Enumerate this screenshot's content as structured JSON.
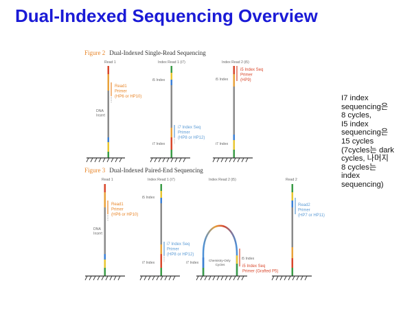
{
  "title": "Dual-Indexed Sequencing Overview",
  "note": "I7 index\nsequencing은\n8 cycles,\nI5 index\nsequencing은\n15 cycles\n(7cycles는 dark\ncycles, 나머지\n8 cycles는\nindex\nsequencing)",
  "colors": {
    "title": "#1a1ad6",
    "figure_number": "#e8862a",
    "read1_primer": "#e8862a",
    "i7_primer": "#5b9bd5",
    "i5_primer": "#d9472b",
    "read2_primer": "#5b9bd5",
    "grey_insert": "#7a7a7a"
  },
  "fig2": {
    "number": "Figure 2",
    "caption": "Dual-Indexed Single-Read Sequencing",
    "columns": [
      "Read 1",
      "Index Read 1 (i7)",
      "Index Read 2 (i5)"
    ],
    "labels": {
      "read1_primer": [
        "Read1",
        "Primer",
        "(HP6 or HP10)"
      ],
      "dna_insert": [
        "DNA",
        "Insert"
      ],
      "i5_index_1": "i5 Index",
      "i5_index_2": "i5 Index",
      "i7_index_1": "i7 Index",
      "i7_index_2": "i7 Index",
      "i7_primer": [
        "i7 Index Seq",
        "Primer",
        "(HP8 or HP12)"
      ],
      "i5_primer": [
        "i5 Index Seq",
        "Primer",
        "(HP9)"
      ]
    }
  },
  "fig3": {
    "number": "Figure 3",
    "caption": "Dual-Indexed Paired-End Sequencing",
    "columns": [
      "Read 1",
      "Index Read 1 (i7)",
      "Index Read 2 (i5)",
      "Read 2"
    ],
    "labels": {
      "read1_primer": [
        "Read1",
        "Primer",
        "(HP6 or HP10)"
      ],
      "dna_insert": [
        "DNA",
        "Insert"
      ],
      "i5_index": "i5 Index",
      "i7_index_1": "i7 Index",
      "i7_index_2": "i7 Index",
      "i7_primer": [
        "i7 Index Seq",
        "Primer",
        "(HP8 or HP12)"
      ],
      "i5_index_loop": "i5 Index",
      "loop_center": [
        "Chemistry-Only",
        "Cycles"
      ],
      "i5_primer": [
        "i5 Index Seq",
        "Primer (Grafted P5)"
      ],
      "read2_primer": [
        "Read2",
        "Primer",
        "(HP7 or HP11)"
      ]
    }
  }
}
